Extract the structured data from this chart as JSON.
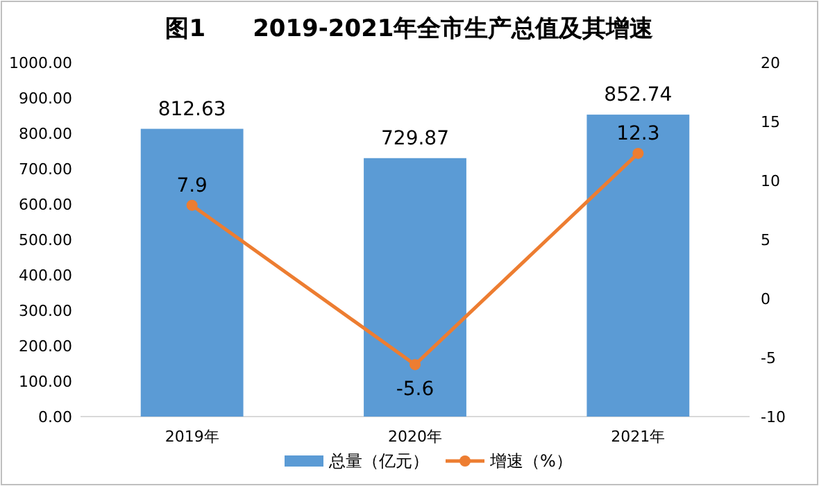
{
  "chart_data": {
    "type": "bar",
    "title": "图1　　2019-2021年全市生产总值及其增速",
    "categories": [
      "2019年",
      "2020年",
      "2021年"
    ],
    "series": [
      {
        "name": "总量（亿元）",
        "color": "#5b9bd5",
        "values": [
          812.63,
          729.87,
          852.74
        ]
      },
      {
        "name": "增速（%）",
        "type": "line",
        "axis": "y2",
        "color": "#ed7d31",
        "marker": "circle",
        "values": [
          7.9,
          -5.6,
          12.3
        ]
      }
    ],
    "ylim": [
      0,
      1000
    ],
    "yticks": [
      {
        "value": 0,
        "label": "0.00"
      },
      {
        "value": 100,
        "label": "100.00"
      },
      {
        "value": 200,
        "label": "200.00"
      },
      {
        "value": 300,
        "label": "300.00"
      },
      {
        "value": 400,
        "label": "400.00"
      },
      {
        "value": 500,
        "label": "500.00"
      },
      {
        "value": 600,
        "label": "600.00"
      },
      {
        "value": 700,
        "label": "700.00"
      },
      {
        "value": 800,
        "label": "800.00"
      },
      {
        "value": 900,
        "label": "900.00"
      },
      {
        "value": 1000,
        "label": "1000.00"
      }
    ],
    "y2lim": [
      -10,
      20
    ],
    "y2ticks": [
      -10,
      -5,
      0,
      5,
      10,
      15,
      20
    ],
    "data_labels": true,
    "legend": "bottom"
  }
}
